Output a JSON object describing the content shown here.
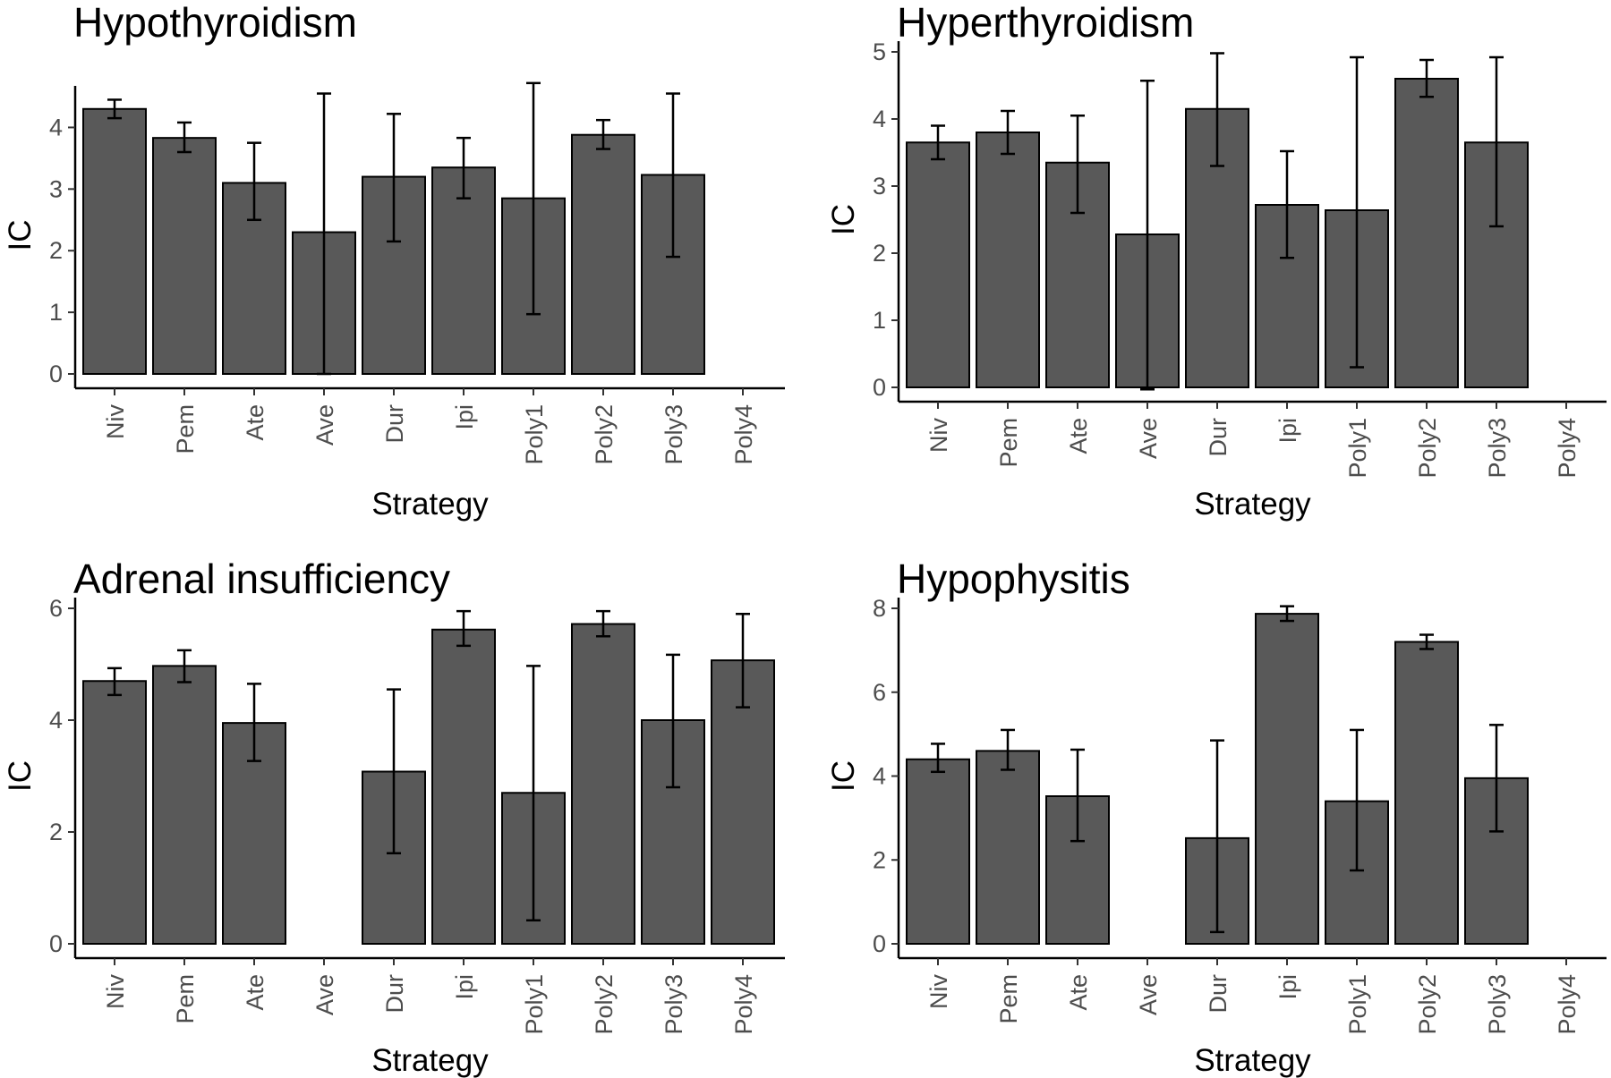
{
  "chart_data": [
    {
      "type": "bar",
      "title": "Hypothyroidism",
      "xlabel": "Strategy",
      "ylabel": "IC",
      "ylim": [
        0,
        4.5
      ],
      "yticks": [
        0,
        1,
        2,
        3,
        4
      ],
      "categories": [
        "Niv",
        "Pem",
        "Ate",
        "Ave",
        "Dur",
        "Ipi",
        "Poly1",
        "Poly2",
        "Poly3",
        "Poly4"
      ],
      "values": [
        4.3,
        3.83,
        3.1,
        2.3,
        3.2,
        3.35,
        2.85,
        3.88,
        3.23,
        null
      ],
      "error_low": [
        4.15,
        3.6,
        2.5,
        0.0,
        2.15,
        2.85,
        0.97,
        3.65,
        1.9,
        null
      ],
      "error_high": [
        4.45,
        4.08,
        3.75,
        4.55,
        4.22,
        3.83,
        4.72,
        4.12,
        4.55,
        null
      ]
    },
    {
      "type": "bar",
      "title": "Hyperthyroidism",
      "xlabel": "Strategy",
      "ylabel": "IC",
      "ylim": [
        0,
        5
      ],
      "yticks": [
        0,
        1,
        2,
        3,
        4,
        5
      ],
      "categories": [
        "Niv",
        "Pem",
        "Ate",
        "Ave",
        "Dur",
        "Ipi",
        "Poly1",
        "Poly2",
        "Poly3",
        "Poly4"
      ],
      "values": [
        3.65,
        3.8,
        3.35,
        2.28,
        4.15,
        2.72,
        2.64,
        4.6,
        3.65,
        null
      ],
      "error_low": [
        3.4,
        3.48,
        2.6,
        -0.03,
        3.3,
        1.93,
        0.3,
        4.33,
        2.4,
        null
      ],
      "error_high": [
        3.9,
        4.12,
        4.05,
        4.57,
        4.98,
        3.52,
        4.92,
        4.88,
        4.92,
        null
      ]
    },
    {
      "type": "bar",
      "title": "Adrenal insufficiency",
      "xlabel": "Strategy",
      "ylabel": "IC",
      "ylim": [
        0,
        6
      ],
      "yticks": [
        0,
        2,
        4,
        6
      ],
      "categories": [
        "Niv",
        "Pem",
        "Ate",
        "Ave",
        "Dur",
        "Ipi",
        "Poly1",
        "Poly2",
        "Poly3",
        "Poly4"
      ],
      "values": [
        4.7,
        4.97,
        3.95,
        null,
        3.08,
        5.62,
        2.7,
        5.72,
        4.0,
        5.07
      ],
      "error_low": [
        4.45,
        4.68,
        3.27,
        null,
        1.62,
        5.33,
        0.42,
        5.5,
        2.8,
        4.23
      ],
      "error_high": [
        4.93,
        5.25,
        4.65,
        null,
        4.55,
        5.95,
        4.97,
        5.95,
        5.17,
        5.9
      ]
    },
    {
      "type": "bar",
      "title": "Hypophysitis",
      "xlabel": "Strategy",
      "ylabel": "IC",
      "ylim": [
        0,
        8
      ],
      "yticks": [
        0,
        2,
        4,
        6,
        8
      ],
      "categories": [
        "Niv",
        "Pem",
        "Ate",
        "Ave",
        "Dur",
        "Ipi",
        "Poly1",
        "Poly2",
        "Poly3",
        "Poly4"
      ],
      "values": [
        4.4,
        4.6,
        3.52,
        null,
        2.52,
        7.87,
        3.4,
        7.2,
        3.95,
        null
      ],
      "error_low": [
        4.1,
        4.15,
        2.45,
        null,
        0.28,
        7.7,
        1.75,
        7.03,
        2.68,
        null
      ],
      "error_high": [
        4.77,
        5.1,
        4.63,
        null,
        4.85,
        8.05,
        5.1,
        7.37,
        5.22,
        null
      ]
    }
  ]
}
